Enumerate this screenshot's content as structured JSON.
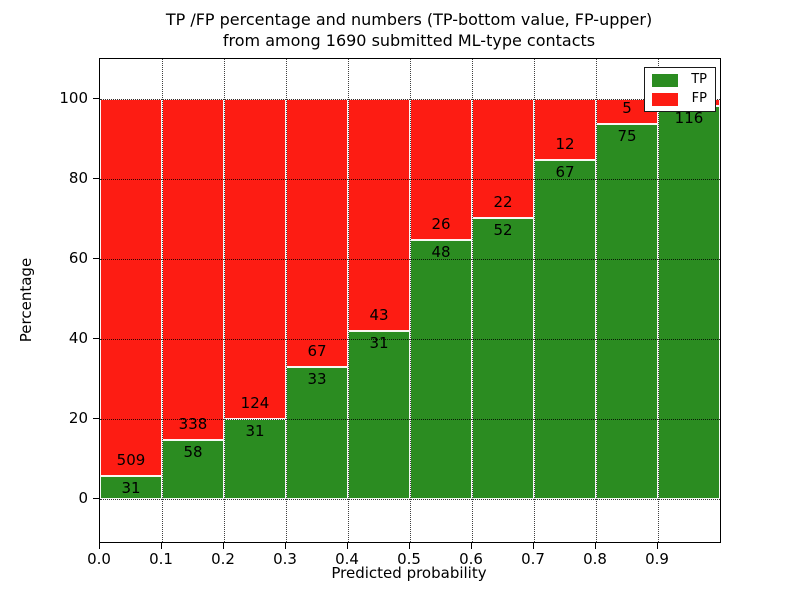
{
  "title": {
    "line1": "TP /FP percentage and numbers (TP-bottom value, FP-upper)",
    "line2": "from among 1690 submitted ML-type contacts"
  },
  "y_axis": {
    "label": "Percentage",
    "ticks": [
      0,
      20,
      40,
      60,
      80,
      100
    ]
  },
  "x_axis": {
    "label": "Predicted probability",
    "ticks": [
      "0.0",
      "0.1",
      "0.2",
      "0.3",
      "0.4",
      "0.5",
      "0.6",
      "0.7",
      "0.8",
      "0.9"
    ]
  },
  "legend": {
    "items": [
      {
        "label": "TP",
        "color": "#2b8c21"
      },
      {
        "label": "FP",
        "color": "#fd1c13"
      }
    ]
  },
  "chart_data": {
    "type": "bar",
    "stacked": true,
    "normalized": "each bin stacks to 100 percent",
    "title": "TP /FP percentage and numbers (TP-bottom value, FP-upper) from among 1690 submitted ML-type contacts",
    "xlabel": "Predicted probability",
    "ylabel": "Percentage",
    "xlim": [
      0.0,
      1.0
    ],
    "ylim": [
      -10.75,
      110
    ],
    "grid": "dotted black, x and y",
    "legend_position": "upper right",
    "bin_start": [
      0.0,
      0.1,
      0.2,
      0.3,
      0.4,
      0.5,
      0.6,
      0.7,
      0.8,
      0.9
    ],
    "bin_width": 0.1,
    "series": [
      {
        "name": "TP",
        "color": "#2b8c21",
        "counts": [
          31,
          58,
          31,
          33,
          31,
          48,
          52,
          67,
          75,
          116
        ]
      },
      {
        "name": "FP",
        "color": "#fd1c13",
        "counts": [
          509,
          338,
          124,
          67,
          43,
          26,
          22,
          12,
          5,
          2
        ]
      }
    ],
    "tp_percent_of_bin": [
      5.7,
      14.6,
      20.0,
      33.0,
      41.9,
      64.9,
      70.3,
      84.8,
      93.8,
      98.3
    ],
    "total_contacts": 1690,
    "fp_label_hidden_on_last_bar": true
  }
}
